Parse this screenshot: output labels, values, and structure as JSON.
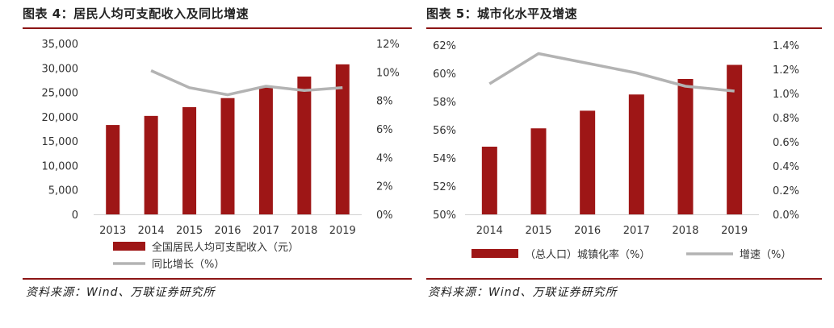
{
  "chart_data": [
    {
      "type": "bar+line",
      "title": "图表 4：居民人均可支配收入及同比增速",
      "categories": [
        "2013",
        "2014",
        "2015",
        "2016",
        "2017",
        "2018",
        "2019"
      ],
      "y_left": {
        "ticks": [
          "35,000",
          "30,000",
          "25,000",
          "20,000",
          "15,000",
          "10,000",
          "5,000",
          "0"
        ],
        "range": [
          0,
          35000
        ]
      },
      "y_right": {
        "ticks": [
          "12%",
          "10%",
          "8%",
          "6%",
          "4%",
          "2%",
          "0%"
        ],
        "range": [
          0,
          12
        ]
      },
      "series": [
        {
          "name": "全国居民人均可支配收入（元）",
          "type": "bar",
          "axis": "left",
          "color": "#9e1616",
          "values": [
            18311,
            20167,
            21966,
            23821,
            25974,
            28228,
            30733
          ]
        },
        {
          "name": "同比增长（%）",
          "type": "line",
          "axis": "right",
          "color": "#b3b3b3",
          "values": [
            null,
            10.1,
            8.9,
            8.4,
            9.0,
            8.7,
            8.9
          ]
        }
      ],
      "legend_position": "bottom",
      "source": "资料来源：Wind、万联证券研究所"
    },
    {
      "type": "bar+line",
      "title": "图表 5：城市化水平及增速",
      "categories": [
        "2014",
        "2015",
        "2016",
        "2017",
        "2018",
        "2019"
      ],
      "y_left": {
        "ticks": [
          "62%",
          "60%",
          "58%",
          "56%",
          "54%",
          "52%",
          "50%"
        ],
        "range": [
          50,
          62
        ]
      },
      "y_right": {
        "ticks": [
          "1.4%",
          "1.2%",
          "1.0%",
          "0.8%",
          "0.6%",
          "0.4%",
          "0.2%",
          "0.0%"
        ],
        "range": [
          0,
          1.4
        ]
      },
      "series": [
        {
          "name": "（总人口）城镇化率（%）",
          "type": "bar",
          "axis": "left",
          "color": "#9e1616",
          "values": [
            54.8,
            56.1,
            57.35,
            58.5,
            59.6,
            60.6
          ]
        },
        {
          "name": "增速（%）",
          "type": "line",
          "axis": "right",
          "color": "#b3b3b3",
          "values": [
            1.08,
            1.33,
            1.25,
            1.17,
            1.06,
            1.02
          ]
        }
      ],
      "legend_position": "bottom",
      "source": "资料来源：Wind、万联证券研究所"
    }
  ]
}
